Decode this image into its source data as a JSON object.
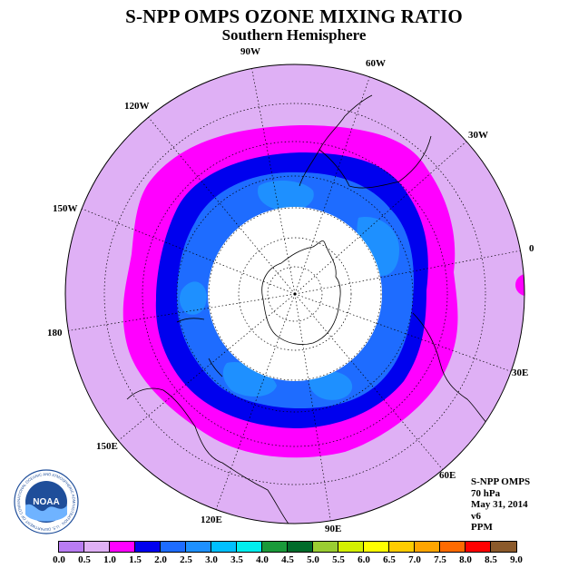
{
  "title": "S-NPP OMPS OZONE MIXING RATIO",
  "subtitle": "Southern Hemisphere",
  "longitude_labels": [
    {
      "text": "90W",
      "lon": -90
    },
    {
      "text": "60W",
      "lon": -60
    },
    {
      "text": "30W",
      "lon": -30
    },
    {
      "text": "0",
      "lon": 0
    },
    {
      "text": "30E",
      "lon": 30
    },
    {
      "text": "60E",
      "lon": 60
    },
    {
      "text": "90E",
      "lon": 90
    },
    {
      "text": "120E",
      "lon": 120
    },
    {
      "text": "150E",
      "lon": 150
    },
    {
      "text": "180",
      "lon": 180
    },
    {
      "text": "150W",
      "lon": -150
    },
    {
      "text": "120W",
      "lon": -120
    }
  ],
  "info": {
    "instrument": "S-NPP OMPS",
    "level": "70 hPa",
    "date": "May 31, 2014",
    "version": "v6",
    "units": "PPM"
  },
  "logo": {
    "text": "NOAA",
    "ring_text": "NATIONAL OCEANIC AND ATMOSPHERIC ADMINISTRATION · U.S. DEPARTMENT OF COMMERCE"
  },
  "colorbar": {
    "ticks": [
      "0.0",
      "0.5",
      "1.0",
      "1.5",
      "2.0",
      "2.5",
      "3.0",
      "3.5",
      "4.0",
      "4.5",
      "5.0",
      "5.5",
      "6.0",
      "6.5",
      "7.0",
      "7.5",
      "8.0",
      "8.5",
      "9.0"
    ],
    "colors": [
      "#b97cf2",
      "#dfb0f5",
      "#ff00ff",
      "#0000ee",
      "#1e6cff",
      "#1e90ff",
      "#00bfff",
      "#00eeee",
      "#1a9a3a",
      "#006b2a",
      "#9acd32",
      "#d4f000",
      "#ffff00",
      "#ffcc00",
      "#ffa500",
      "#ff6a00",
      "#ff0000",
      "#8b5a2b"
    ]
  },
  "chart_data": {
    "type": "heatmap",
    "projection": "polar-stereographic-south",
    "units": "PPM",
    "levels": [
      0.0,
      0.5,
      1.0,
      1.5,
      2.0,
      2.5,
      3.0,
      3.5,
      4.0,
      4.5,
      5.0,
      5.5,
      6.0,
      6.5,
      7.0,
      7.5,
      8.0,
      8.5,
      9.0
    ],
    "field_bands_ppm": [
      {
        "range": [
          0.5,
          1.0
        ],
        "region": "outer ring, mid-latitudes"
      },
      {
        "range": [
          1.0,
          1.5
        ],
        "region": "band around polar vortex edge"
      },
      {
        "range": [
          1.5,
          2.0
        ],
        "region": "inner band"
      },
      {
        "range": [
          2.0,
          2.5
        ],
        "region": "vortex interior"
      },
      {
        "range": [
          2.5,
          3.0
        ],
        "region": "patches inside vortex"
      },
      {
        "range": [
          1.0,
          1.5
        ],
        "region": "small patch near 0 lon on map edge"
      }
    ],
    "missing_data": "white disk centered on pole"
  }
}
